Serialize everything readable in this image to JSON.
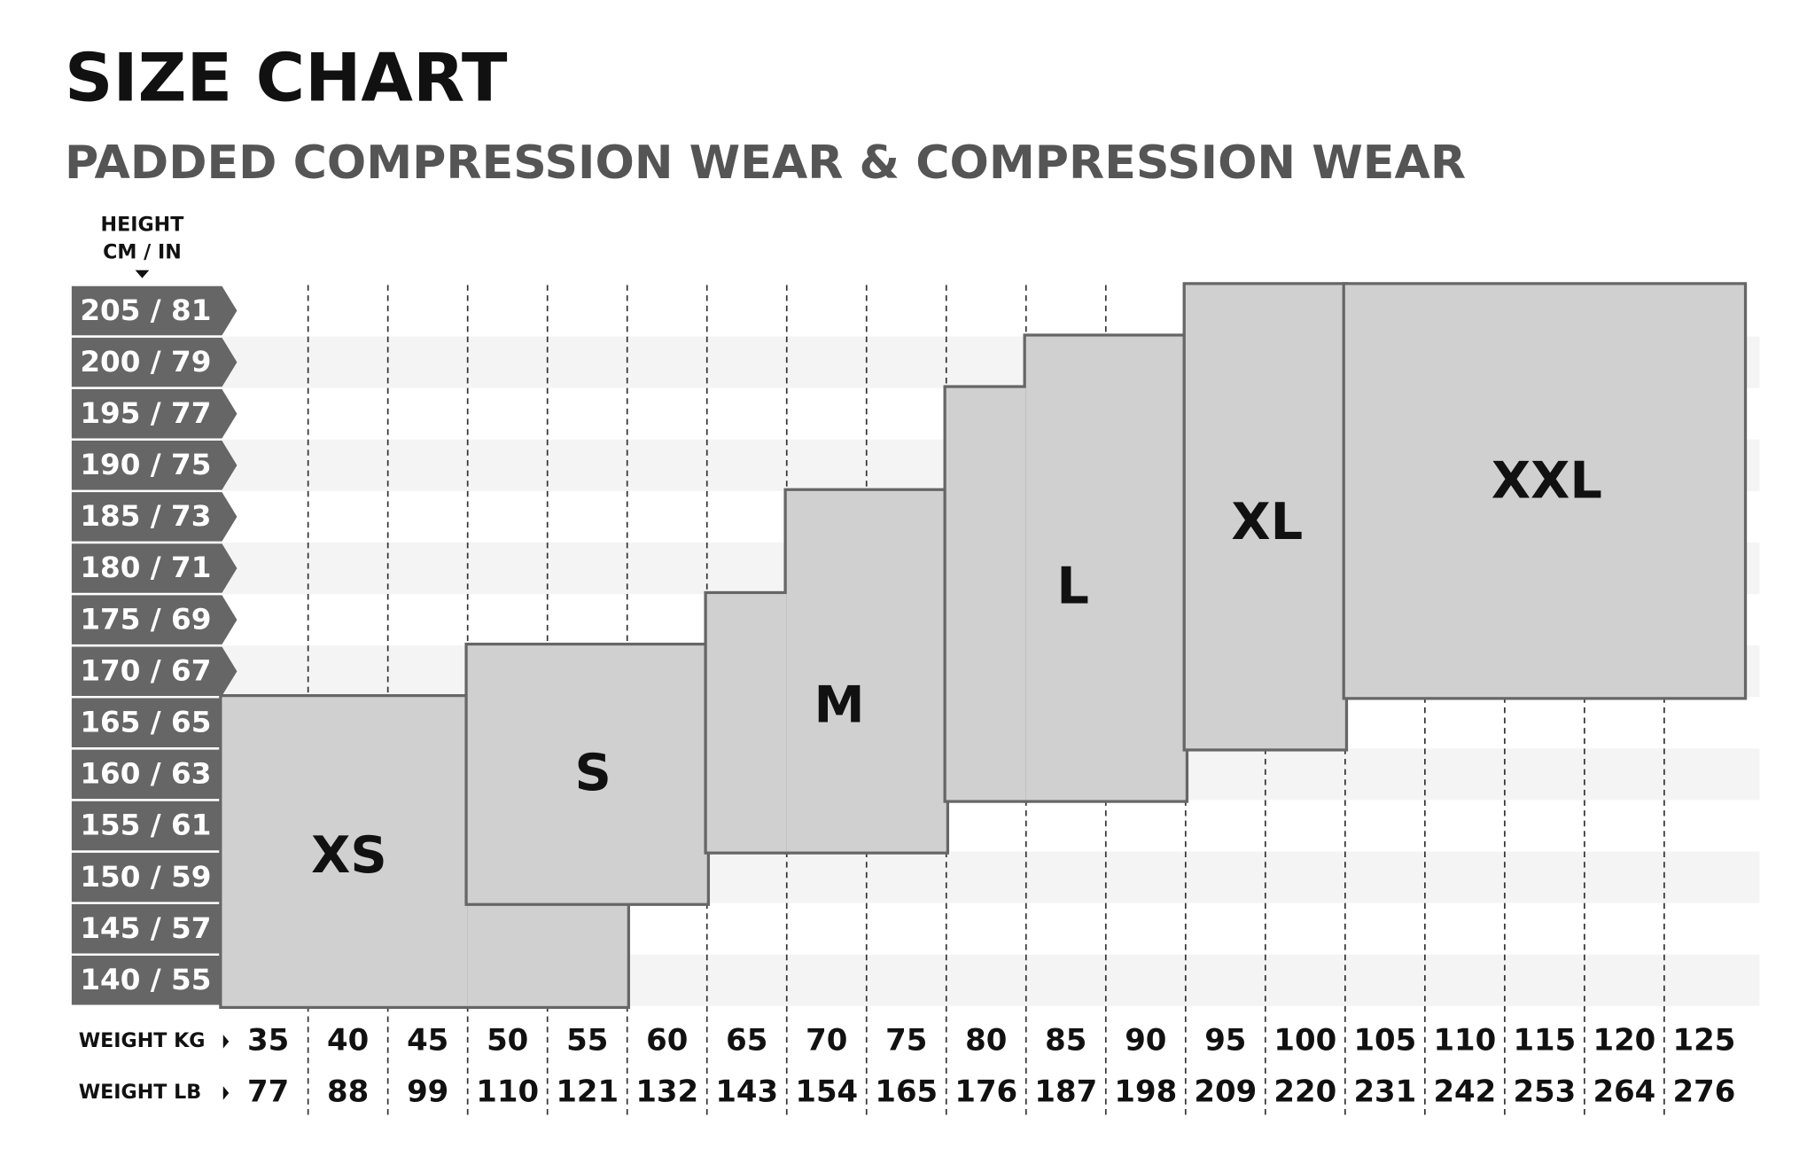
{
  "title": "SIZE CHART",
  "subtitle": "PADDED COMPRESSION WEAR & COMPRESSION WEAR",
  "height_label": [
    "HEIGHT",
    "CM / IN"
  ],
  "heights": [
    "205 / 81",
    "200 / 79",
    "195 / 77",
    "190 / 75",
    "185 / 73",
    "180 / 71",
    "175 / 69",
    "170 / 67",
    "165 / 65",
    "160 / 63",
    "155 / 61",
    "150 / 59",
    "145 / 57",
    "140 / 55"
  ],
  "weight_kg_label": "WEIGHT KG",
  "weight_lb_label": "WEIGHT LB",
  "weight_kg": [
    35,
    40,
    45,
    50,
    55,
    60,
    65,
    70,
    75,
    80,
    85,
    90,
    95,
    100,
    105,
    110,
    115,
    120,
    125
  ],
  "weight_lb": [
    77,
    88,
    99,
    110,
    121,
    132,
    143,
    154,
    165,
    176,
    187,
    198,
    209,
    220,
    231,
    242,
    253,
    264,
    276
  ],
  "sizes": [
    {
      "name": "XS",
      "steps": [
        {
          "kg": [
            35,
            45
          ],
          "cm": [
            140,
            165
          ]
        },
        {
          "kg": [
            50,
            55
          ],
          "cm": [
            140,
            145
          ]
        }
      ]
    },
    {
      "name": "S",
      "steps": [
        {
          "kg": [
            50,
            60
          ],
          "cm": [
            150,
            170
          ]
        }
      ]
    },
    {
      "name": "M",
      "steps": [
        {
          "kg": [
            65,
            65
          ],
          "cm": [
            155,
            175
          ]
        },
        {
          "kg": [
            70,
            75
          ],
          "cm": [
            155,
            185
          ]
        }
      ]
    },
    {
      "name": "L",
      "steps": [
        {
          "kg": [
            80,
            80
          ],
          "cm": [
            160,
            195
          ]
        },
        {
          "kg": [
            85,
            90
          ],
          "cm": [
            160,
            200
          ]
        }
      ]
    },
    {
      "name": "XL",
      "steps": [
        {
          "kg": [
            95,
            100
          ],
          "cm": [
            165,
            205
          ]
        }
      ]
    },
    {
      "name": "XXL",
      "steps": [
        {
          "kg": [
            105,
            125
          ],
          "cm": [
            170,
            205
          ]
        }
      ]
    }
  ]
}
